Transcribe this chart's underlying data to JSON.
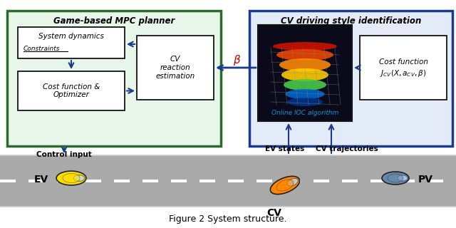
{
  "title": "Figure 2 System structure.",
  "bg_color": "#ffffff",
  "road_color": "#aaaaaa",
  "road_stripe_color": "#ffffff",
  "green_box_color": "#e8f5e9",
  "green_box_border": "#2d6a2d",
  "blue_box_color": "#e3eaf8",
  "blue_box_border": "#1a3a8a",
  "arrow_color": "#1a3a8a",
  "beta_color": "#cc0000",
  "cyan_label_color": "#0099cc",
  "mpc_title": "Game-based MPC planner",
  "cv_title": "CV driving style identification",
  "sys_dyn_label": "System dynamics",
  "constraints_label": "Constraints",
  "cost_opt_label": "Cost function &\nOptimizer",
  "cv_reaction_label": "CV\nreaction\nestimation",
  "ioc_label": "Online IOC algorithm",
  "cost_fn_label": "Cost function",
  "cost_fn_math": "$J_{CV}(X, a_{CV}, \\beta)$",
  "control_input_label": "Control input",
  "ev_states_label": "EV states",
  "cv_traj_label": "CV trajectories",
  "ev_label": "EV",
  "cv_label": "CV",
  "pv_label": "PV"
}
